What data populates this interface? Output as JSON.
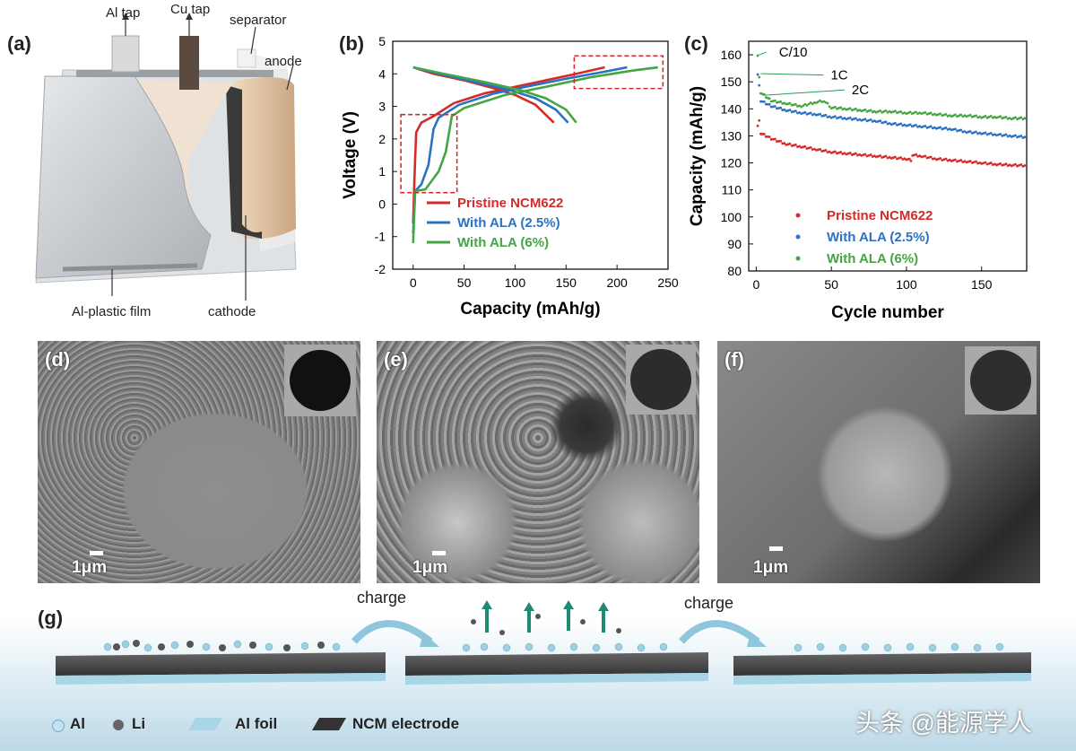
{
  "panel_a": {
    "label": "(a)",
    "al_tap": "Al tap",
    "cu_tap": "Cu tap",
    "separator": "separator",
    "anode": "anode",
    "al_plastic_film": "Al-plastic film",
    "cathode": "cathode"
  },
  "panel_b": {
    "label": "(b)",
    "legend": [
      "Pristine NCM622",
      "With ALA (2.5%)",
      "With ALA (6%)"
    ]
  },
  "panel_c": {
    "label": "(c)",
    "rate_labels": [
      "C/10",
      "1C",
      "2C"
    ],
    "legend": [
      "Pristine NCM622",
      "With ALA (2.5%)",
      "With ALA (6%)"
    ]
  },
  "sem": {
    "d_label": "(d)",
    "e_label": "(e)",
    "f_label": "(f)",
    "scale": "1μm"
  },
  "panel_g": {
    "label": "(g)",
    "charge1": "charge",
    "charge2": "charge",
    "legend_al": "Al",
    "legend_li": "Li",
    "legend_foil": "Al foil",
    "legend_ncm": "NCM electrode"
  },
  "watermark": "头条 @能源学人",
  "colors": {
    "pristine": "#d62a2a",
    "ala25": "#2a72c2",
    "ala6": "#44a544"
  },
  "chart_data": [
    {
      "type": "line",
      "xlabel": "Capacity (mAh/g)",
      "ylabel": "Voltage (V)",
      "xlim": [
        -20,
        250
      ],
      "ylim": [
        -2,
        5
      ],
      "xticks": [
        0,
        50,
        100,
        150,
        200,
        250
      ],
      "yticks": [
        -2,
        -1,
        0,
        1,
        2,
        3,
        4,
        5
      ],
      "series": [
        {
          "name": "Pristine NCM622",
          "charge": [
            [
              0,
              -0.6
            ],
            [
              1,
              0.5
            ],
            [
              2,
              1.4
            ],
            [
              3,
              2.2
            ],
            [
              8,
              2.5
            ],
            [
              20,
              2.7
            ],
            [
              40,
              3.1
            ],
            [
              70,
              3.4
            ],
            [
              100,
              3.6
            ],
            [
              130,
              3.8
            ],
            [
              160,
              4.0
            ],
            [
              188,
              4.2
            ]
          ],
          "discharge": [
            [
              0,
              4.2
            ],
            [
              20,
              4.0
            ],
            [
              50,
              3.8
            ],
            [
              80,
              3.55
            ],
            [
              100,
              3.35
            ],
            [
              120,
              3.05
            ],
            [
              138,
              2.5
            ]
          ]
        },
        {
          "name": "With ALA (2.5%)",
          "charge": [
            [
              0,
              -0.9
            ],
            [
              2,
              0.4
            ],
            [
              8,
              0.6
            ],
            [
              15,
              1.2
            ],
            [
              20,
              2.3
            ],
            [
              25,
              2.65
            ],
            [
              45,
              3.05
            ],
            [
              80,
              3.4
            ],
            [
              110,
              3.6
            ],
            [
              150,
              3.85
            ],
            [
              185,
              4.05
            ],
            [
              210,
              4.2
            ]
          ],
          "discharge": [
            [
              0,
              4.2
            ],
            [
              25,
              4.0
            ],
            [
              60,
              3.75
            ],
            [
              95,
              3.5
            ],
            [
              120,
              3.25
            ],
            [
              140,
              2.9
            ],
            [
              152,
              2.5
            ]
          ]
        },
        {
          "name": "With ALA (6%)",
          "charge": [
            [
              0,
              -1.2
            ],
            [
              2,
              0.4
            ],
            [
              12,
              0.45
            ],
            [
              25,
              1.0
            ],
            [
              32,
              1.6
            ],
            [
              38,
              2.7
            ],
            [
              50,
              2.95
            ],
            [
              90,
              3.35
            ],
            [
              130,
              3.6
            ],
            [
              175,
              3.9
            ],
            [
              215,
              4.1
            ],
            [
              240,
              4.2
            ]
          ],
          "discharge": [
            [
              0,
              4.2
            ],
            [
              30,
              4.0
            ],
            [
              70,
              3.75
            ],
            [
              105,
              3.5
            ],
            [
              130,
              3.25
            ],
            [
              150,
              2.9
            ],
            [
              160,
              2.5
            ]
          ]
        }
      ]
    },
    {
      "type": "scatter",
      "xlabel": "Cycle number",
      "ylabel": "Capacity (mAh/g)",
      "xlim": [
        -5,
        180
      ],
      "ylim": [
        80,
        165
      ],
      "xticks": [
        0,
        50,
        100,
        150
      ],
      "yticks": [
        80,
        90,
        100,
        110,
        120,
        130,
        140,
        150,
        160
      ],
      "series": [
        {
          "name": "Pristine NCM622",
          "points": [
            [
              1,
              134
            ],
            [
              2,
              136
            ],
            [
              3,
              131
            ],
            [
              10,
              129
            ],
            [
              20,
              127
            ],
            [
              30,
              126
            ],
            [
              40,
              125
            ],
            [
              50,
              124
            ],
            [
              60,
              123.5
            ],
            [
              70,
              123
            ],
            [
              80,
              122.5
            ],
            [
              90,
              122
            ],
            [
              100,
              121.5
            ],
            [
              103,
              121
            ],
            [
              104,
              123
            ],
            [
              110,
              122.5
            ],
            [
              120,
              121.5
            ],
            [
              130,
              121
            ],
            [
              140,
              120.5
            ],
            [
              150,
              120
            ],
            [
              160,
              119.5
            ],
            [
              170,
              119.2
            ],
            [
              180,
              119
            ]
          ]
        },
        {
          "name": "With ALA (2.5%)",
          "points": [
            [
              1,
              153
            ],
            [
              2,
              149
            ],
            [
              3,
              143
            ],
            [
              10,
              141
            ],
            [
              20,
              139.5
            ],
            [
              30,
              138.5
            ],
            [
              40,
              138
            ],
            [
              50,
              137
            ],
            [
              60,
              136.5
            ],
            [
              70,
              136
            ],
            [
              80,
              135.5
            ],
            [
              90,
              134.5
            ],
            [
              100,
              134
            ],
            [
              110,
              133.5
            ],
            [
              120,
              133
            ],
            [
              130,
              132.5
            ],
            [
              140,
              131.5
            ],
            [
              150,
              131
            ],
            [
              160,
              130.5
            ],
            [
              170,
              130
            ],
            [
              180,
              129.5
            ]
          ]
        },
        {
          "name": "With ALA (6%)",
          "points": [
            [
              1,
              160
            ],
            [
              2,
              152
            ],
            [
              3,
              146
            ],
            [
              10,
              143
            ],
            [
              20,
              142
            ],
            [
              30,
              141
            ],
            [
              40,
              142.5
            ],
            [
              45,
              143
            ],
            [
              50,
              140.5
            ],
            [
              60,
              140
            ],
            [
              70,
              139.5
            ],
            [
              80,
              139
            ],
            [
              90,
              139
            ],
            [
              100,
              138.5
            ],
            [
              110,
              138.5
            ],
            [
              120,
              138
            ],
            [
              130,
              137.5
            ],
            [
              140,
              137.5
            ],
            [
              150,
              137
            ],
            [
              160,
              137
            ],
            [
              170,
              136.5
            ],
            [
              180,
              136.5
            ]
          ]
        }
      ]
    }
  ]
}
